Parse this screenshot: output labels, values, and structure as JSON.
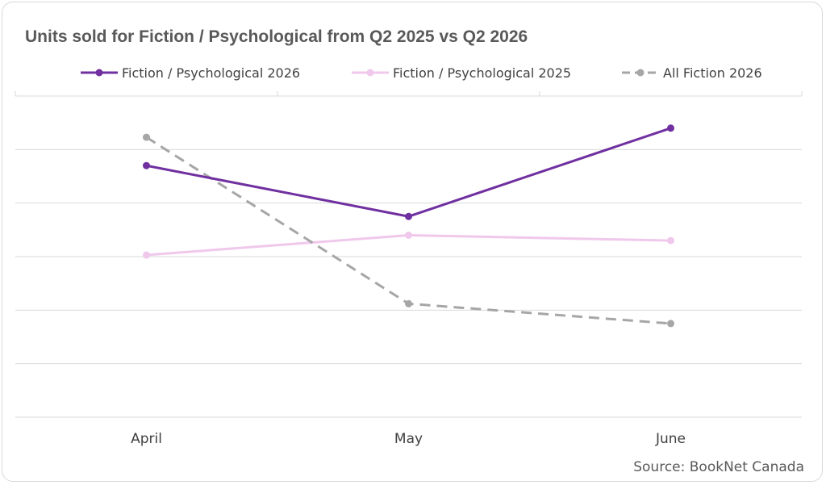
{
  "chart_data": {
    "type": "line",
    "title": "Units sold for Fiction / Psychological from Q2 2025 vs Q2 2026",
    "categories": [
      "April",
      "May",
      "June"
    ],
    "series": [
      {
        "name": "Fiction / Psychological 2026",
        "values": [
          470,
          375,
          540
        ],
        "color": "#7030a0",
        "style": "solid"
      },
      {
        "name": "Fiction / Psychological 2025",
        "values": [
          303,
          340,
          330
        ],
        "color": "#f0c8ec",
        "style": "solid"
      },
      {
        "name": "All Fiction 2026",
        "values": [
          523,
          212,
          175
        ],
        "color": "#a6a6a6",
        "style": "dashed"
      }
    ],
    "ylim": [
      0,
      600
    ],
    "grid": true,
    "legend": "top",
    "xlabel": "",
    "ylabel": "",
    "source": "Source: BookNet Canada"
  }
}
